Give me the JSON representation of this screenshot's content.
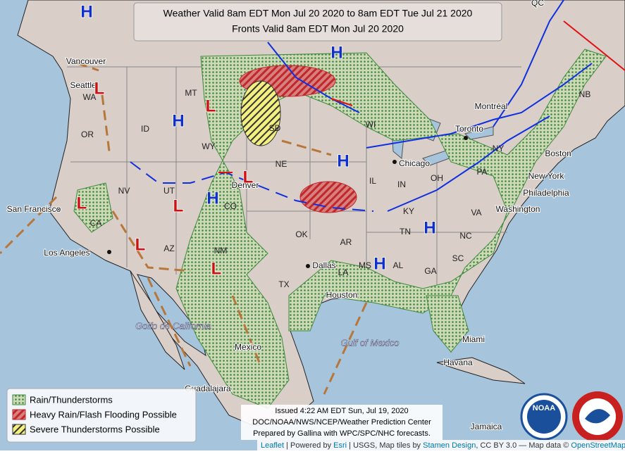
{
  "header": {
    "title_lines": [
      "Weather Valid 8am EDT Mon Jul 20 2020 to 8am EDT Tue Jul 21 2020",
      "Fronts Valid 8am EDT Mon Jul 20 2020"
    ]
  },
  "pressure_centers": [
    "H",
    "H",
    "H",
    "H",
    "H",
    "H",
    "H",
    "L",
    "L",
    "L",
    "L",
    "L",
    "L",
    "L"
  ],
  "cities": [
    "Vancouver",
    "Seattle",
    "San Francisco",
    "Los Angeles",
    "Denver",
    "Dallas",
    "Houston",
    "Chicago",
    "Toronto",
    "Montréal",
    "New York",
    "Philadelphia",
    "Washington",
    "Boston",
    "Miami",
    "Havana",
    "Mexico",
    "Guadalajara",
    "Jamaica",
    "QC"
  ],
  "regions": [
    "MT",
    "WA",
    "OR",
    "ID",
    "WY",
    "SD",
    "NE",
    "CO",
    "UT",
    "NV",
    "CA",
    "AZ",
    "NM",
    "TX",
    "OK",
    "AR",
    "LA",
    "MS",
    "AL",
    "GA",
    "SC",
    "NC",
    "TN",
    "KY",
    "VA",
    "OH",
    "PA",
    "NY",
    "IL",
    "IN",
    "WI",
    "NB"
  ],
  "water": [
    "Golfo de California",
    "Gulf of Mexico"
  ],
  "legend": {
    "items": [
      "Rain/Thunderstorms",
      "Heavy Rain/Flash Flooding Possible",
      "Severe Thunderstorms Possible"
    ]
  },
  "issued": {
    "lines": [
      "Issued 4:22 AM EDT Sun, Jul 19, 2020",
      "DOC/NOAA/NWS/NCEP/Weather Prediction Center",
      "Prepared by Gallina with WPC/SPC/NHC forecasts."
    ]
  },
  "logos": {
    "noaa": "NOAA"
  },
  "attribution": [
    "Leaflet",
    " | Powered by ",
    "Esri",
    " | USGS, Map tiles by ",
    "Stamen Design",
    ", CC BY 3.0 — Map data © ",
    "OpenStreetMap"
  ]
}
